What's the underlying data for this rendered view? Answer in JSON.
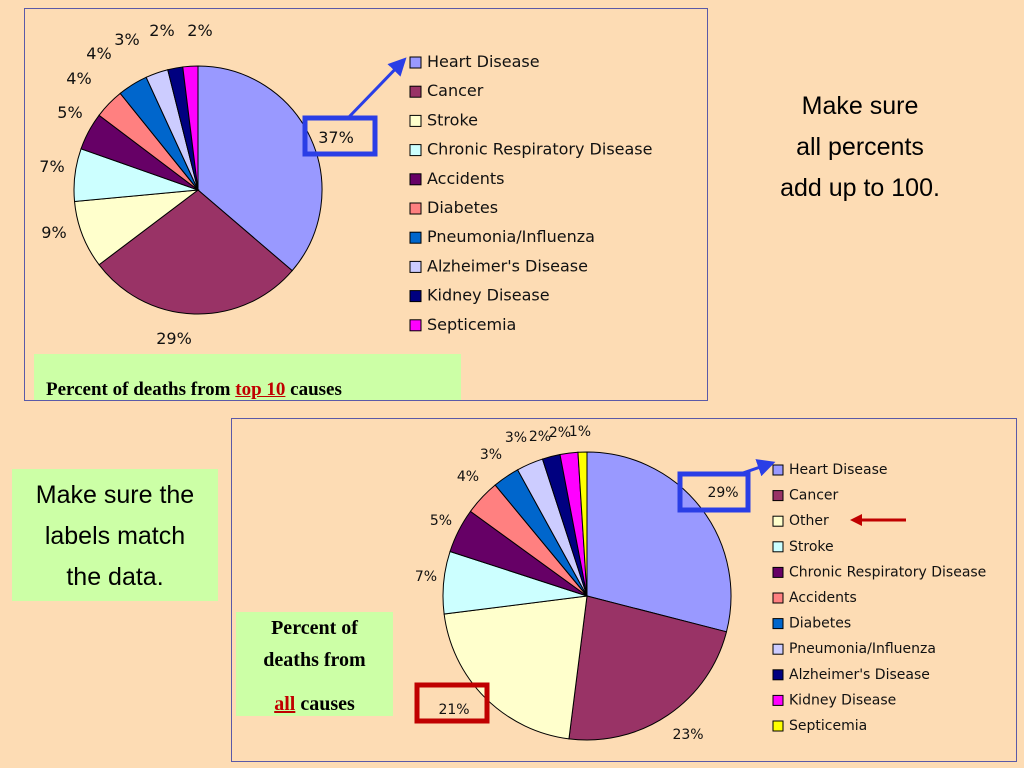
{
  "chart_data": [
    {
      "type": "pie",
      "title": "",
      "categories": [
        "Heart Disease",
        "Cancer",
        "Stroke",
        "Chronic Respiratory Disease",
        "Accidents",
        "Diabetes",
        "Pneumonia/Influenza",
        "Alzheimer's Disease",
        "Kidney Disease",
        "Septicemia"
      ],
      "values": [
        37,
        29,
        9,
        7,
        5,
        4,
        4,
        3,
        2,
        2
      ],
      "labels": [
        "37%",
        "29%",
        "9%",
        "7%",
        "5%",
        "4%",
        "4%",
        "3%",
        "2%",
        "2%"
      ],
      "colors": [
        "#9999ff",
        "#993366",
        "#ffffcc",
        "#ccffff",
        "#660066",
        "#ff8080",
        "#0066cc",
        "#ccccff",
        "#000080",
        "#ff00ff"
      ],
      "legend_position": "right",
      "highlighted_label": "37%"
    },
    {
      "type": "pie",
      "title": "",
      "categories": [
        "Heart Disease",
        "Cancer",
        "Other",
        "Stroke",
        "Chronic Respiratory Disease",
        "Accidents",
        "Diabetes",
        "Pneumonia/Influenza",
        "Alzheimer's Disease",
        "Kidney Disease",
        "Septicemia"
      ],
      "values": [
        29,
        23,
        21,
        7,
        5,
        4,
        3,
        3,
        2,
        2,
        1
      ],
      "labels": [
        "29%",
        "23%",
        "21%",
        "7%",
        "5%",
        "4%",
        "3%",
        "3%",
        "2%",
        "2%",
        "1%"
      ],
      "colors": [
        "#9999ff",
        "#993366",
        "#ffffcc",
        "#ccffff",
        "#660066",
        "#ff8080",
        "#0066cc",
        "#ccccff",
        "#000080",
        "#ff00ff",
        "#ffff00"
      ],
      "legend_position": "right",
      "highlighted_labels": [
        "29%",
        "21%"
      ],
      "arrow_points_to": "Other"
    }
  ],
  "captions": {
    "top": {
      "before": "Percent of deaths  from ",
      "highlight": "top 10",
      "after": " causes"
    },
    "bottom": {
      "line1": "Percent of",
      "line2": "deaths from",
      "highlight": "all",
      "after": " causes"
    }
  },
  "notes": {
    "right": [
      "Make sure",
      "all percents",
      "add up to 100."
    ],
    "left": [
      "Make sure the",
      "labels match",
      "the data."
    ]
  },
  "colors": {
    "background": "#fddcb4",
    "caption_bg": "#ccffa6",
    "highlight_blue": "#2a3ee6",
    "highlight_red": "#c00000"
  }
}
